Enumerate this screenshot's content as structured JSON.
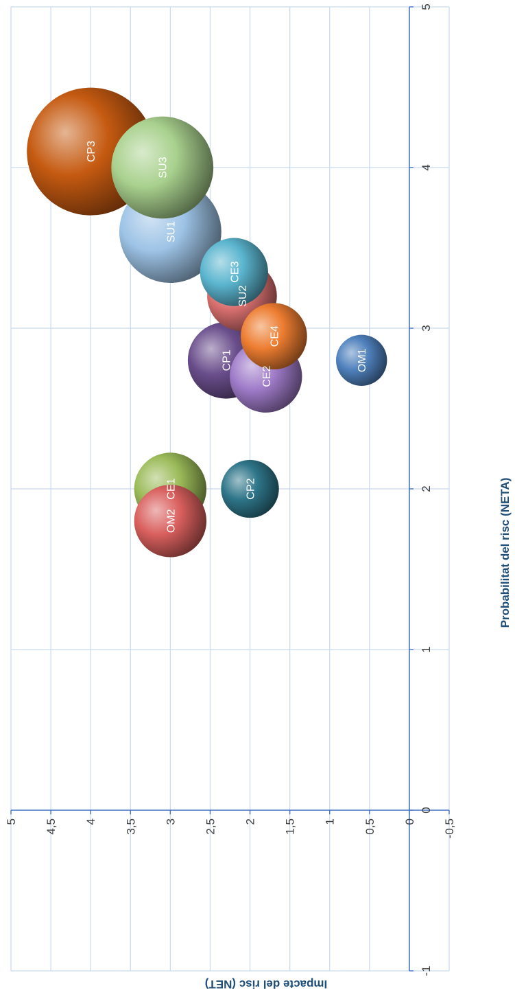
{
  "chart_data": {
    "type": "bubble",
    "xlabel": "Probabilitat del risc (NETA)",
    "ylabel": "Impacte del risc (NET)",
    "xlim": [
      -1,
      5
    ],
    "ylim": [
      -0.5,
      5
    ],
    "x_ticks": [
      "-1",
      "0",
      "1",
      "2",
      "3",
      "4",
      "5"
    ],
    "y_ticks": [
      "-0,5",
      "0",
      "0,5",
      "1",
      "1,5",
      "2",
      "2,5",
      "3",
      "3,5",
      "4",
      "4,5",
      "5"
    ],
    "grid": true,
    "legend": "none",
    "series": [
      {
        "label": "CP3",
        "x": 4.1,
        "y": 4.0,
        "size": 1.5,
        "color": "#C55A11"
      },
      {
        "label": "SU1",
        "x": 3.6,
        "y": 3.0,
        "size": 1.2,
        "color": "#9DC3E6"
      },
      {
        "label": "SU3",
        "x": 4.0,
        "y": 3.1,
        "size": 1.2,
        "color": "#A9D18E"
      },
      {
        "label": "CE3",
        "x": 3.35,
        "y": 2.2,
        "size": 0.8,
        "color": "#5BB5CF"
      },
      {
        "label": "SU2",
        "x": 3.2,
        "y": 2.1,
        "size": 0.82,
        "color": "#D9706F"
      },
      {
        "label": "CE4",
        "x": 2.95,
        "y": 1.7,
        "size": 0.78,
        "color": "#ED7D31"
      },
      {
        "label": "CP1",
        "x": 2.8,
        "y": 2.3,
        "size": 0.9,
        "color": "#6A4E8C"
      },
      {
        "label": "CE2",
        "x": 2.7,
        "y": 1.8,
        "size": 0.85,
        "color": "#9F7BC9"
      },
      {
        "label": "OM1",
        "x": 2.8,
        "y": 0.6,
        "size": 0.6,
        "color": "#4F81BD"
      },
      {
        "label": "CE1",
        "x": 2.0,
        "y": 3.0,
        "size": 0.85,
        "color": "#9BBB59"
      },
      {
        "label": "OM2",
        "x": 1.8,
        "y": 3.0,
        "size": 0.85,
        "color": "#D9605E"
      },
      {
        "label": "CP2",
        "x": 2.0,
        "y": 2.0,
        "size": 0.68,
        "color": "#2E7589"
      }
    ]
  }
}
